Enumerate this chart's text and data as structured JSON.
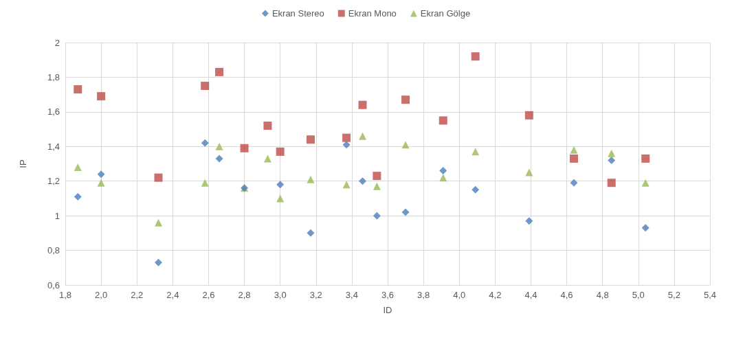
{
  "chart_data": {
    "type": "scatter",
    "xlabel": "ID",
    "ylabel": "IP",
    "legend": "top",
    "grid": true,
    "xlim": [
      1.8,
      5.4
    ],
    "ylim": [
      0.6,
      2
    ],
    "xticks": [
      {
        "value": 1.8,
        "label": "1,8"
      },
      {
        "value": 2.0,
        "label": "2,0"
      },
      {
        "value": 2.2,
        "label": "2,2"
      },
      {
        "value": 2.4,
        "label": "2,4"
      },
      {
        "value": 2.6,
        "label": "2,6"
      },
      {
        "value": 2.8,
        "label": "2,8"
      },
      {
        "value": 3.0,
        "label": "3,0"
      },
      {
        "value": 3.2,
        "label": "3,2"
      },
      {
        "value": 3.4,
        "label": "3,4"
      },
      {
        "value": 3.6,
        "label": "3,6"
      },
      {
        "value": 3.8,
        "label": "3,8"
      },
      {
        "value": 4.0,
        "label": "4,0"
      },
      {
        "value": 4.2,
        "label": "4,2"
      },
      {
        "value": 4.4,
        "label": "4,4"
      },
      {
        "value": 4.6,
        "label": "4,6"
      },
      {
        "value": 4.8,
        "label": "4,8"
      },
      {
        "value": 5.0,
        "label": "5,0"
      },
      {
        "value": 5.2,
        "label": "5,2"
      },
      {
        "value": 5.4,
        "label": "5,4"
      }
    ],
    "yticks": [
      {
        "value": 0.6,
        "label": "0,6"
      },
      {
        "value": 0.8,
        "label": "0,8"
      },
      1,
      {
        "value": 1.2,
        "label": "1,2"
      },
      {
        "value": 1.4,
        "label": "1,4"
      },
      {
        "value": 1.6,
        "label": "1,6"
      },
      {
        "value": 1.8,
        "label": "1,8"
      },
      2
    ],
    "series": [
      {
        "name": "Ekran Stereo",
        "color": "#4a7ebb",
        "marker": "diamond",
        "x": [
          1.87,
          2.0,
          2.32,
          2.58,
          2.66,
          2.8,
          3.0,
          3.17,
          3.37,
          3.46,
          3.54,
          3.7,
          3.91,
          4.09,
          4.39,
          4.64,
          4.85,
          5.04
        ],
        "values": [
          1.11,
          1.24,
          0.73,
          1.42,
          1.33,
          1.16,
          1.18,
          0.9,
          1.41,
          1.2,
          1.0,
          1.02,
          1.26,
          1.15,
          0.97,
          1.19,
          1.32,
          0.93
        ]
      },
      {
        "name": "Ekran Mono",
        "color": "#be4b48",
        "marker": "square",
        "x": [
          1.87,
          2.0,
          2.32,
          2.58,
          2.66,
          2.8,
          2.93,
          3.0,
          3.17,
          3.37,
          3.46,
          3.54,
          3.7,
          3.91,
          4.09,
          4.39,
          4.64,
          4.85,
          5.04
        ],
        "values": [
          1.73,
          1.69,
          1.22,
          1.75,
          1.83,
          1.39,
          1.52,
          1.37,
          1.44,
          1.45,
          1.64,
          1.23,
          1.67,
          1.55,
          1.92,
          1.58,
          1.33,
          1.19,
          1.33
        ]
      },
      {
        "name": "Ekran Gölge",
        "color": "#98b954",
        "marker": "triangle",
        "x": [
          1.87,
          2.0,
          2.32,
          2.58,
          2.66,
          2.8,
          2.93,
          3.0,
          3.17,
          3.37,
          3.46,
          3.54,
          3.7,
          3.91,
          4.09,
          4.39,
          4.64,
          4.85,
          5.04
        ],
        "values": [
          1.28,
          1.19,
          0.96,
          1.19,
          1.4,
          1.16,
          1.33,
          1.1,
          1.21,
          1.18,
          1.46,
          1.17,
          1.41,
          1.22,
          1.37,
          1.25,
          1.38,
          1.36,
          1.19
        ]
      }
    ]
  }
}
